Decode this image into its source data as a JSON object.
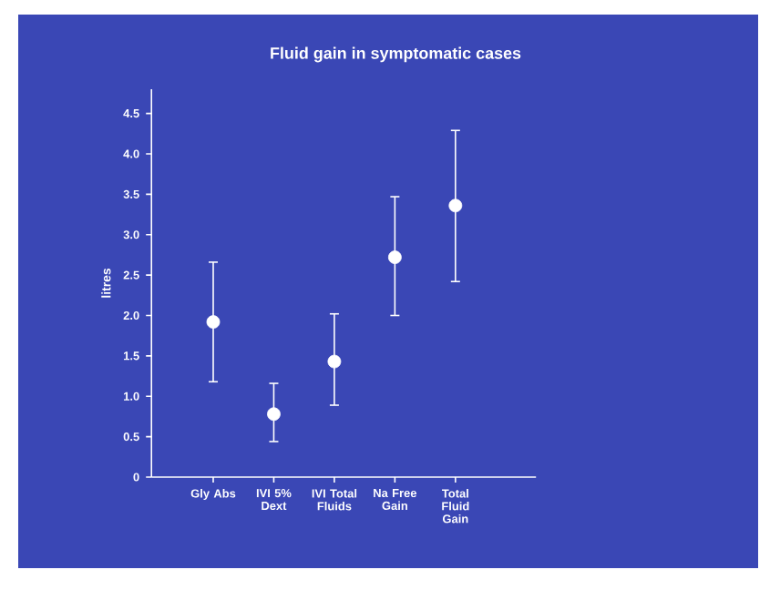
{
  "chart_data": {
    "type": "scatter",
    "title": "Fluid gain in symptomatic cases",
    "ylabel": "litres",
    "categories": [
      "Gly Abs",
      "IVI 5% Dext",
      "IVI Total Fluids",
      "Na Free Gain",
      "Total Fluid Gain"
    ],
    "values": [
      1.92,
      0.78,
      1.43,
      2.72,
      3.36
    ],
    "errors": [
      [
        1.18,
        2.66
      ],
      [
        0.44,
        1.16
      ],
      [
        0.89,
        2.02
      ],
      [
        2.0,
        3.47
      ],
      [
        2.42,
        4.29
      ]
    ],
    "color": "#ffffff",
    "marker": "circle",
    "grid": false,
    "ylim": [
      0,
      4.8
    ],
    "yticks": [
      0,
      0.5,
      {
        "value": 1,
        "label": "1.0"
      },
      1.5,
      {
        "value": 2,
        "label": "2.0"
      },
      2.5,
      {
        "value": 3,
        "label": "3.0"
      },
      3.5,
      {
        "value": 4,
        "label": "4.0"
      },
      4.5
    ]
  }
}
